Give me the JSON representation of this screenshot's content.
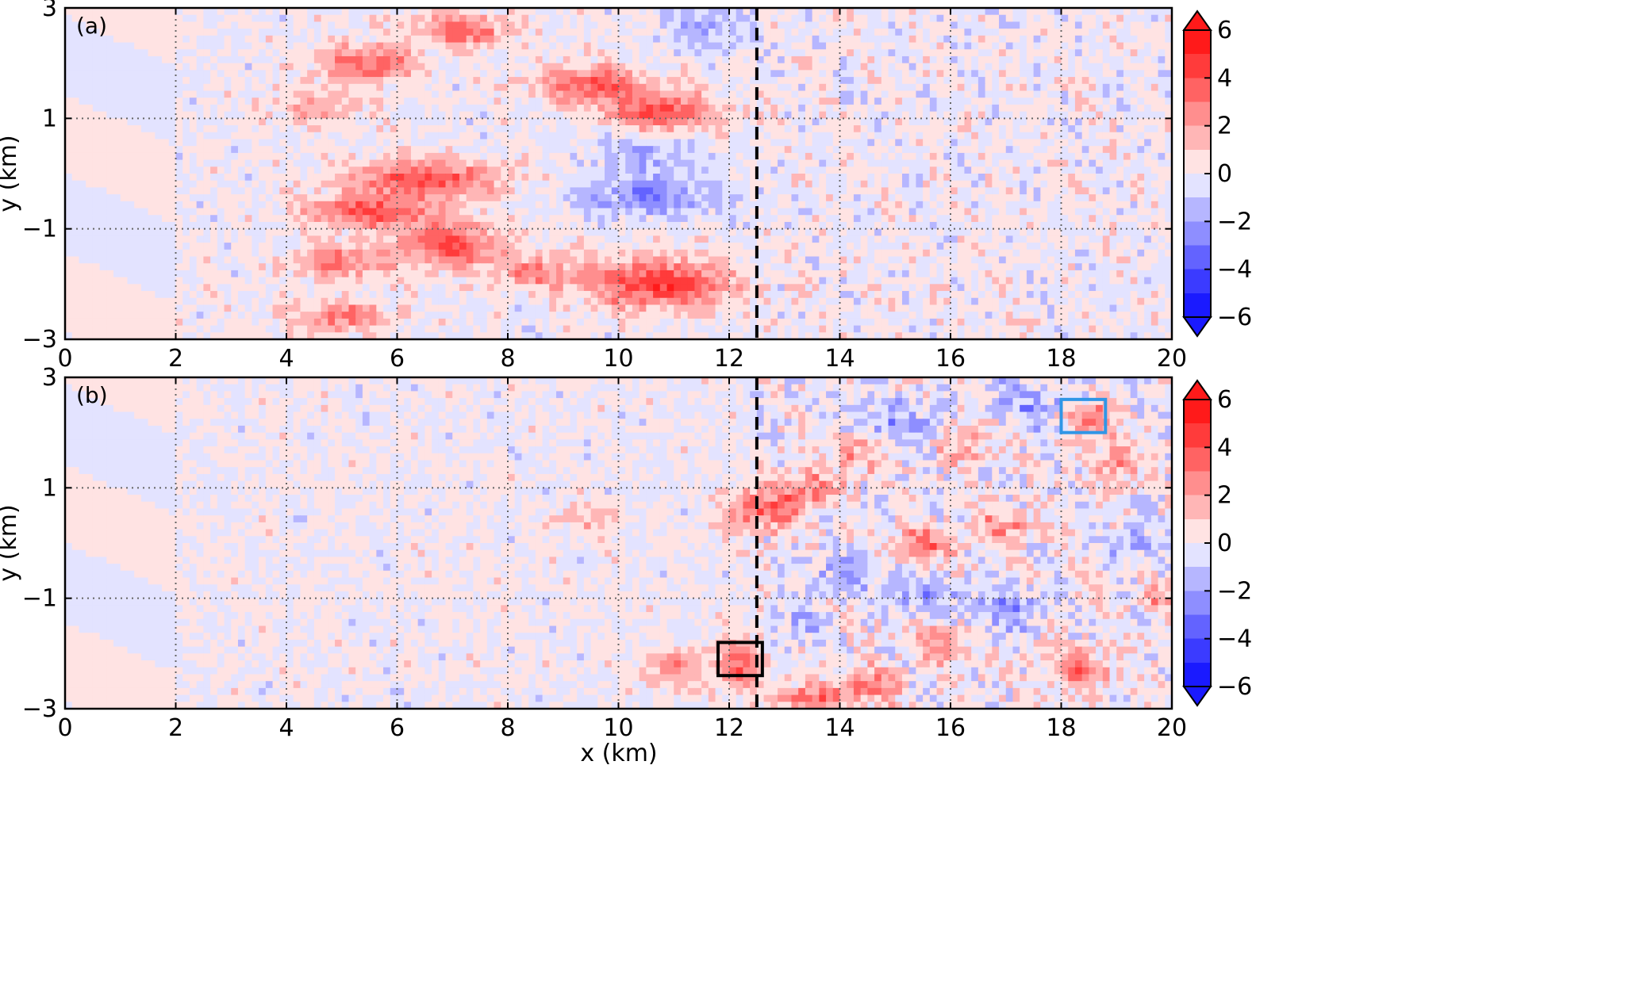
{
  "chart_data": [
    {
      "type": "heatmap",
      "panel_label": "(a)",
      "xlabel": "",
      "ylabel": "y (km)",
      "xlim": [
        0,
        20
      ],
      "ylim": [
        -3,
        3
      ],
      "xticks": [
        "0",
        "2",
        "4",
        "6",
        "8",
        "10",
        "12",
        "14",
        "16",
        "18",
        "20"
      ],
      "yticks": [
        "−3",
        "−1",
        "1",
        "3"
      ],
      "grid": true,
      "vline_x": 12.5,
      "colorbar": {
        "ticks": [
          "6",
          "4",
          "2",
          "0",
          "−2",
          "−4",
          "−6"
        ],
        "range": [
          -6,
          6
        ],
        "levels": 12
      },
      "features": [
        {
          "x": 5.5,
          "y": 2.0,
          "v": 3.5,
          "sx": 0.9,
          "sy": 0.35
        },
        {
          "x": 7.2,
          "y": 2.6,
          "v": 3.5,
          "sx": 0.8,
          "sy": 0.3
        },
        {
          "x": 9.5,
          "y": 1.6,
          "v": 3.5,
          "sx": 1.0,
          "sy": 0.35
        },
        {
          "x": 10.8,
          "y": 1.1,
          "v": 4.0,
          "sx": 1.0,
          "sy": 0.35
        },
        {
          "x": 4.5,
          "y": 1.2,
          "v": 2.0,
          "sx": 0.8,
          "sy": 0.3
        },
        {
          "x": 6.5,
          "y": -0.1,
          "v": 4.0,
          "sx": 1.4,
          "sy": 0.35
        },
        {
          "x": 5.5,
          "y": -0.7,
          "v": 3.5,
          "sx": 1.2,
          "sy": 0.3
        },
        {
          "x": 7.0,
          "y": -1.3,
          "v": 4.0,
          "sx": 0.9,
          "sy": 0.4
        },
        {
          "x": 5.0,
          "y": -1.6,
          "v": 3.0,
          "sx": 0.9,
          "sy": 0.3
        },
        {
          "x": 10.7,
          "y": -2.0,
          "v": 4.5,
          "sx": 1.3,
          "sy": 0.45
        },
        {
          "x": 8.5,
          "y": -1.8,
          "v": 2.5,
          "sx": 0.8,
          "sy": 0.3
        },
        {
          "x": 5.0,
          "y": -2.6,
          "v": 3.0,
          "sx": 0.9,
          "sy": 0.3
        },
        {
          "x": 10.5,
          "y": -0.4,
          "v": -2.5,
          "sx": 1.2,
          "sy": 0.4
        },
        {
          "x": 10.5,
          "y": 0.4,
          "v": -1.8,
          "sx": 1.0,
          "sy": 0.35
        },
        {
          "x": 11.5,
          "y": 2.6,
          "v": -1.8,
          "sx": 0.8,
          "sy": 0.4
        }
      ]
    },
    {
      "type": "heatmap",
      "panel_label": "(b)",
      "xlabel": "x (km)",
      "ylabel": "y (km)",
      "xlim": [
        0,
        20
      ],
      "ylim": [
        -3,
        3
      ],
      "xticks": [
        "0",
        "2",
        "4",
        "6",
        "8",
        "10",
        "12",
        "14",
        "16",
        "18",
        "20"
      ],
      "yticks": [
        "−3",
        "−1",
        "1",
        "3"
      ],
      "grid": true,
      "vline_x": 12.5,
      "colorbar": {
        "ticks": [
          "6",
          "4",
          "2",
          "0",
          "−2",
          "−4",
          "−6"
        ],
        "range": [
          -6,
          6
        ],
        "levels": 12
      },
      "boxes": [
        {
          "x0": 11.8,
          "x1": 12.6,
          "y0": -2.4,
          "y1": -1.8,
          "color": "#000000"
        },
        {
          "x0": 18.0,
          "x1": 18.8,
          "y0": 2.0,
          "y1": 2.6,
          "color": "#2f96e6"
        }
      ],
      "features": [
        {
          "x": 12.6,
          "y": 0.6,
          "v": 3.5,
          "sx": 0.6,
          "sy": 0.4
        },
        {
          "x": 13.4,
          "y": 1.0,
          "v": 3.0,
          "sx": 0.5,
          "sy": 0.35
        },
        {
          "x": 12.2,
          "y": -2.2,
          "v": 3.5,
          "sx": 0.45,
          "sy": 0.5
        },
        {
          "x": 11.0,
          "y": -2.3,
          "v": 2.5,
          "sx": 0.5,
          "sy": 0.35
        },
        {
          "x": 13.5,
          "y": -2.8,
          "v": 3.5,
          "sx": 0.6,
          "sy": 0.25
        },
        {
          "x": 14.5,
          "y": -2.6,
          "v": 3.0,
          "sx": 0.5,
          "sy": 0.3
        },
        {
          "x": 15.5,
          "y": 0.0,
          "v": 3.0,
          "sx": 0.7,
          "sy": 0.3
        },
        {
          "x": 18.5,
          "y": 2.3,
          "v": 3.5,
          "sx": 0.4,
          "sy": 0.3
        },
        {
          "x": 19.0,
          "y": 1.5,
          "v": 2.5,
          "sx": 0.4,
          "sy": 0.4
        },
        {
          "x": 17.0,
          "y": 0.3,
          "v": 2.5,
          "sx": 0.5,
          "sy": 0.3
        },
        {
          "x": 18.3,
          "y": -2.3,
          "v": 3.0,
          "sx": 0.6,
          "sy": 0.35
        },
        {
          "x": 14.3,
          "y": 1.6,
          "v": 2.5,
          "sx": 0.4,
          "sy": 0.35
        },
        {
          "x": 16.3,
          "y": 1.8,
          "v": 2.5,
          "sx": 0.4,
          "sy": 0.35
        },
        {
          "x": 15.8,
          "y": -1.8,
          "v": 2.5,
          "sx": 0.5,
          "sy": 0.35
        },
        {
          "x": 19.7,
          "y": -1.0,
          "v": 2.5,
          "sx": 0.3,
          "sy": 0.3
        },
        {
          "x": 15.0,
          "y": 2.2,
          "v": -1.8,
          "sx": 0.8,
          "sy": 0.4
        },
        {
          "x": 17.5,
          "y": 2.5,
          "v": -1.8,
          "sx": 0.7,
          "sy": 0.4
        },
        {
          "x": 14.2,
          "y": -0.5,
          "v": -1.8,
          "sx": 0.8,
          "sy": 0.4
        },
        {
          "x": 17.0,
          "y": -1.2,
          "v": -1.8,
          "sx": 0.8,
          "sy": 0.4
        },
        {
          "x": 15.5,
          "y": -1.0,
          "v": -1.5,
          "sx": 0.6,
          "sy": 0.35
        },
        {
          "x": 19.3,
          "y": 0.0,
          "v": -1.5,
          "sx": 0.5,
          "sy": 0.4
        },
        {
          "x": 13.2,
          "y": -1.5,
          "v": -1.5,
          "sx": 0.5,
          "sy": 0.4
        },
        {
          "x": 9.5,
          "y": 0.4,
          "v": 1.5,
          "sx": 0.6,
          "sy": 0.3
        }
      ]
    }
  ]
}
